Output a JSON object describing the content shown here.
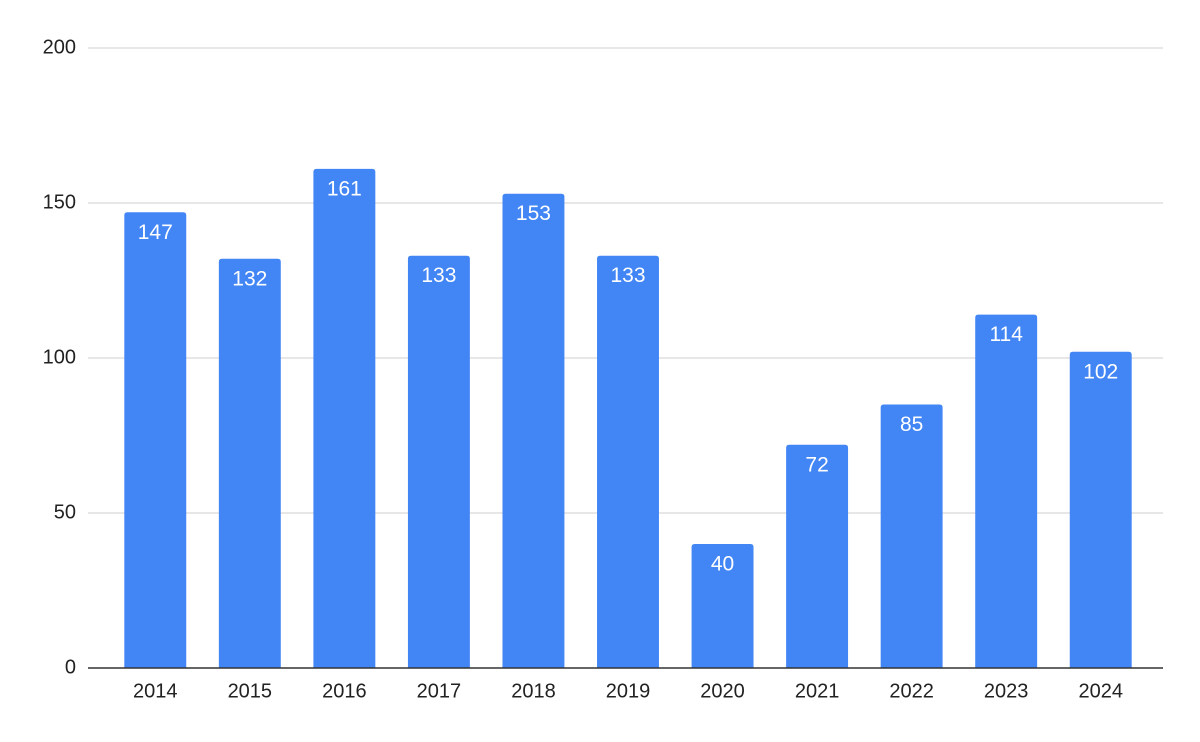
{
  "chart_data": {
    "type": "bar",
    "categories": [
      "2014",
      "2015",
      "2016",
      "2017",
      "2018",
      "2019",
      "2020",
      "2021",
      "2022",
      "2023",
      "2024"
    ],
    "values": [
      147,
      132,
      161,
      133,
      153,
      133,
      40,
      72,
      85,
      114,
      102
    ],
    "color": "#4285f4",
    "ylim": [
      0,
      200
    ],
    "yticks": [
      0,
      50,
      100,
      150,
      200
    ],
    "grid": true
  }
}
